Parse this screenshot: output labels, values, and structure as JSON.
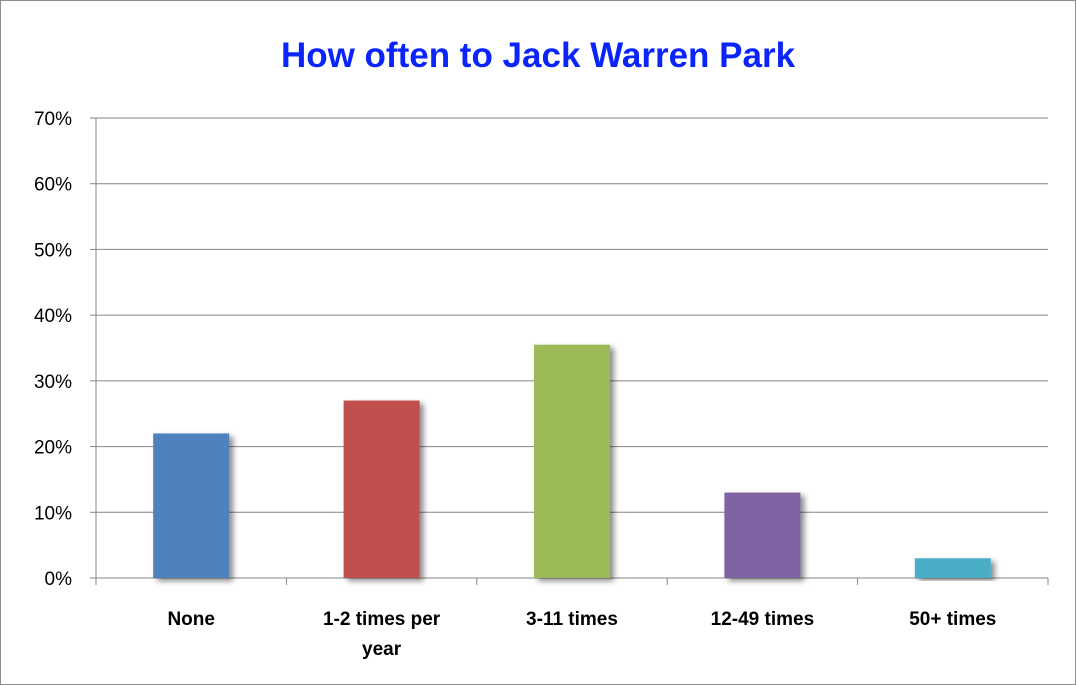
{
  "chart_data": {
    "type": "bar",
    "title": "How often to Jack Warren Park",
    "categories": [
      [
        "None"
      ],
      [
        "1-2 times per",
        "year"
      ],
      [
        "3-11 times"
      ],
      [
        "12-49 times"
      ],
      [
        "50+ times"
      ]
    ],
    "values": [
      22,
      27,
      35.5,
      13,
      3
    ],
    "colors": [
      "#4f81bd",
      "#c0504d",
      "#9bbb59",
      "#8064a2",
      "#4bacc6"
    ],
    "ylim": [
      0,
      70
    ],
    "yticks": [
      0,
      10,
      20,
      30,
      40,
      50,
      60,
      70
    ],
    "ytick_labels": [
      "0%",
      "10%",
      "20%",
      "30%",
      "40%",
      "50%",
      "60%",
      "70%"
    ],
    "grid": true,
    "legend": "none"
  }
}
